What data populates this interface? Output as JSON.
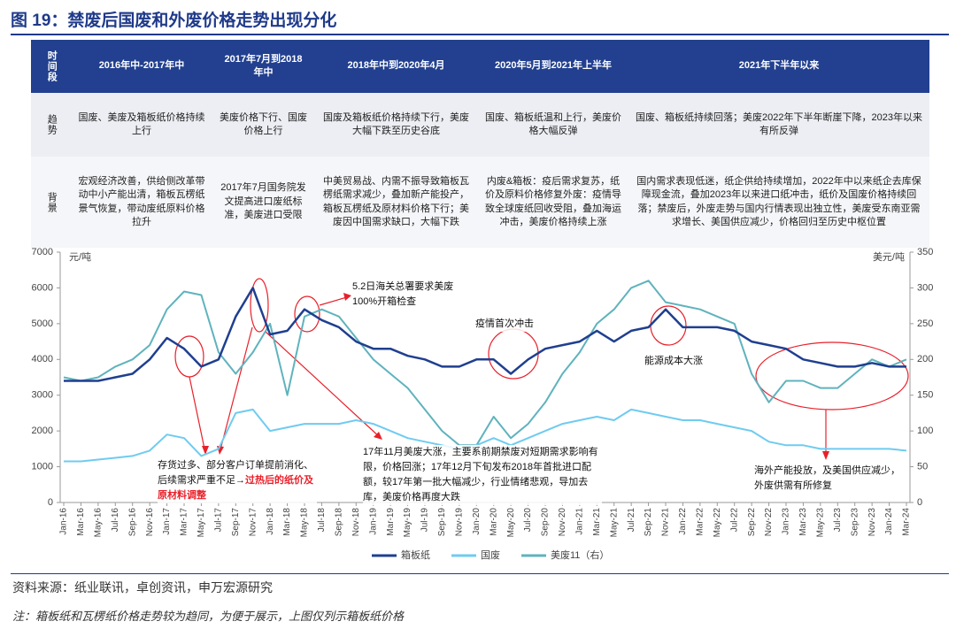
{
  "title": "图 19：禁废后国废和外废价格走势出现分化",
  "table": {
    "header": [
      "时间段",
      "2016年中-2017年中",
      "2017年7月到2018年中",
      "2018年中到2020年4月",
      "2020年5月到2021年上半年",
      "2021年下半年以来"
    ],
    "rows": [
      [
        "趋势",
        "国废、美废及箱板纸价格持续上行",
        "美废价格下行、国废价格上行",
        "国废及箱板纸价格持续下行，美废大幅下跌至历史谷底",
        "国废、箱板纸温和上行，美废价格大幅反弹",
        "国废、箱板纸持续回落；美废2022年下半年断崖下降，2023年以来有所反弹"
      ],
      [
        "背景",
        "宏观经济改善，供给侧改革带动中小产能出清，箱板瓦楞纸景气恢复，带动废纸原料价格拉升",
        "2017年7月国务院发文提高进口废纸标准，美废进口受限",
        "中美贸易战、内需不振导致箱板瓦楞纸需求减少，叠加新产能投产，箱板瓦楞纸及原材料价格下行；美废因中国需求缺口，大幅下跌",
        "内废&箱板：疫后需求复苏，纸价及原料价格修复外废：疫情导致全球废纸回收受阻，叠加海运冲击，美废价格持续上涨",
        "国内需求表现低迷，纸企供给持续增加，2022年中以来纸企去库保障现金流，叠加2023年以来进口纸冲击，纸价及国废价格持续回落；禁废后，外废走势与国内行情表现出独立性，美废受东南亚需求增长、美国供应减少，价格回归至历史中枢位置"
      ]
    ]
  },
  "chart_data": {
    "type": "line",
    "y_label": "元/吨",
    "y2_label": "美元/吨",
    "categories": [
      "Jan-16",
      "Mar-16",
      "May-16",
      "Jul-16",
      "Sep-16",
      "Nov-16",
      "Jan-17",
      "Mar-17",
      "May-17",
      "Jul-17",
      "Sep-17",
      "Nov-17",
      "Jan-18",
      "Mar-18",
      "May-18",
      "Jul-18",
      "Sep-18",
      "Nov-18",
      "Jan-19",
      "Mar-19",
      "May-19",
      "Jul-19",
      "Sep-19",
      "Nov-19",
      "Jan-20",
      "Mar-20",
      "May-20",
      "Jul-20",
      "Sep-20",
      "Nov-20",
      "Jan-21",
      "Mar-21",
      "May-21",
      "Jul-21",
      "Sep-21",
      "Nov-21",
      "Jan-22",
      "Mar-22",
      "May-22",
      "Jul-22",
      "Sep-22",
      "Nov-22",
      "Jan-23",
      "Mar-23",
      "May-23",
      "Jul-23",
      "Sep-23",
      "Nov-23",
      "Jan-24",
      "Mar-24"
    ],
    "series": [
      {
        "name": "箱板纸",
        "color": "#1f3f8f",
        "values": [
          3400,
          3400,
          3400,
          3500,
          3600,
          4000,
          4600,
          4300,
          3800,
          4000,
          5200,
          6000,
          4700,
          4800,
          5400,
          5100,
          4900,
          4500,
          4300,
          4300,
          4100,
          4000,
          3800,
          3800,
          4000,
          4000,
          3600,
          4000,
          4300,
          4400,
          4500,
          4800,
          4500,
          4800,
          4900,
          5400,
          4900,
          4900,
          4900,
          4800,
          4500,
          4400,
          4300,
          4000,
          3900,
          3800,
          3800,
          3900,
          3800,
          3800
        ]
      },
      {
        "name": "国废",
        "color": "#6fcbf0",
        "values": [
          1150,
          1150,
          1200,
          1250,
          1300,
          1450,
          1900,
          1800,
          1300,
          1500,
          2500,
          2600,
          2000,
          2100,
          2200,
          2200,
          2200,
          2300,
          2200,
          2000,
          1800,
          1700,
          1600,
          1500,
          1600,
          1800,
          1600,
          1800,
          2000,
          2200,
          2300,
          2400,
          2300,
          2600,
          2500,
          2400,
          2300,
          2300,
          2200,
          2100,
          2000,
          1700,
          1600,
          1600,
          1500,
          1500,
          1500,
          1500,
          1500,
          1450
        ]
      },
      {
        "name": "美废11（右）",
        "color": "#5fb3bd",
        "axis": "y2",
        "values": [
          175,
          170,
          175,
          190,
          200,
          220,
          270,
          295,
          290,
          210,
          180,
          210,
          250,
          150,
          260,
          270,
          260,
          230,
          200,
          180,
          160,
          130,
          100,
          80,
          80,
          120,
          90,
          110,
          140,
          180,
          210,
          250,
          270,
          300,
          310,
          280,
          275,
          270,
          260,
          250,
          180,
          140,
          170,
          170,
          160,
          160,
          180,
          200,
          190,
          200
        ]
      }
    ],
    "ylim": [
      0,
      7000
    ],
    "yticks": [
      0,
      1000,
      2000,
      3000,
      4000,
      5000,
      6000,
      7000
    ],
    "y2lim": [
      0,
      350
    ],
    "y2ticks": [
      0,
      50,
      100,
      150,
      200,
      250,
      300,
      350
    ],
    "legend": "bottom",
    "annotations": [
      {
        "text": "5.2日海关总署要求美废100%开箱检查"
      },
      {
        "text": "疫情首次冲击"
      },
      {
        "text": "能源成本大涨"
      },
      {
        "text": "存货过多、部分客户订单提前消化、后续需求严重不足→",
        "highlight": "过热后的纸价及原材料调整"
      },
      {
        "text": "17年11月美废大涨，主要系前期禁废对短期需求影响有限，价格回涨；17年12月下旬发布2018年首批进口配额，较17年第一批大幅减少，行业情绪悲观，导加去库，美废价格再度大跌"
      },
      {
        "text": "海外产能投放，及美国供应减少，外废供需有所修复"
      }
    ]
  },
  "footer": {
    "source": "资料来源：纸业联讯，卓创资讯，申万宏源研究",
    "note": "注：箱板纸和瓦楞纸价格走势较为趋同，为便于展示，上图仅列示箱板纸价格"
  }
}
